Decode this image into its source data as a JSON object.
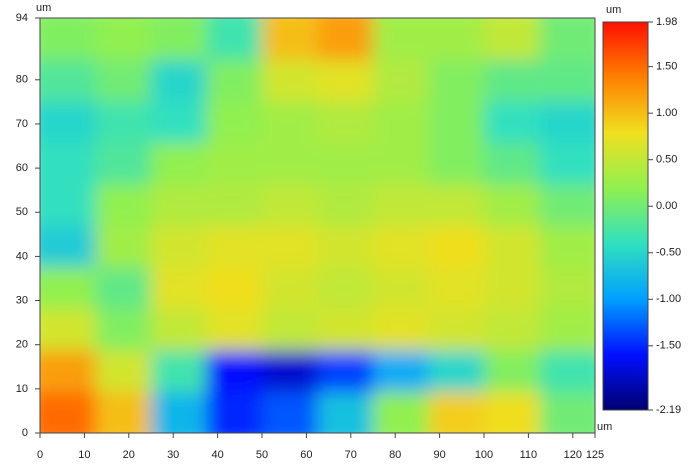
{
  "chart_data": {
    "type": "heatmap",
    "x_unit": "um",
    "y_unit": "um",
    "colorbar_unit": "um",
    "xbins": [
      0,
      12.5,
      25,
      37.5,
      50,
      62.5,
      75,
      87.5,
      100,
      112.5,
      125
    ],
    "ybins": [
      0,
      9.4,
      18.8,
      28.2,
      37.6,
      47,
      56.4,
      65.8,
      75.2,
      84.6,
      94
    ],
    "z": [
      [
        1.5,
        1.0,
        -0.8,
        -1.5,
        -1.3,
        -0.7,
        0.2,
        0.9,
        0.8,
        0.0
      ],
      [
        1.2,
        0.6,
        -0.3,
        -1.6,
        -1.8,
        -1.4,
        -0.9,
        -0.5,
        0.1,
        -0.3
      ],
      [
        0.6,
        0.1,
        0.5,
        0.7,
        0.5,
        0.6,
        0.7,
        0.6,
        0.5,
        0.3
      ],
      [
        0.2,
        -0.1,
        0.7,
        0.8,
        0.6,
        0.5,
        0.6,
        0.7,
        0.6,
        0.4
      ],
      [
        -0.6,
        0.3,
        0.6,
        0.7,
        0.7,
        0.6,
        0.7,
        0.8,
        0.6,
        0.3
      ],
      [
        -0.4,
        0.2,
        0.4,
        0.4,
        0.5,
        0.4,
        0.5,
        0.5,
        0.3,
        0.0
      ],
      [
        -0.4,
        -0.2,
        0.2,
        0.3,
        0.3,
        0.3,
        0.3,
        0.1,
        -0.1,
        -0.4
      ],
      [
        -0.5,
        -0.3,
        -0.4,
        0.2,
        0.3,
        0.4,
        0.3,
        0.1,
        -0.4,
        -0.5
      ],
      [
        -0.2,
        0.0,
        -0.5,
        0.1,
        0.6,
        0.7,
        0.4,
        0.1,
        -0.1,
        -0.1
      ],
      [
        0.1,
        0.2,
        0.1,
        -0.3,
        1.0,
        1.2,
        0.3,
        0.3,
        0.5,
        0.0
      ]
    ],
    "xlim": [
      0,
      125
    ],
    "xticks": [
      0,
      10,
      20,
      30,
      40,
      50,
      60,
      70,
      80,
      90,
      100,
      110,
      120,
      125
    ],
    "ylim": [
      0,
      94
    ],
    "yticks": [
      0,
      10,
      20,
      30,
      40,
      50,
      60,
      70,
      80,
      94
    ],
    "zlim": [
      -2.19,
      1.98
    ],
    "zticks": [
      1.98,
      {
        "value": 1.5,
        "label": "1.50"
      },
      {
        "value": 1,
        "label": "1.00"
      },
      {
        "value": 0.5,
        "label": "0.50"
      },
      {
        "value": 0,
        "label": "0.00"
      },
      {
        "value": -0.5,
        "label": "-0.50"
      },
      {
        "value": -1,
        "label": "-1.00"
      },
      {
        "value": -1.5,
        "label": "-1.50"
      },
      -2.19
    ],
    "colormap": [
      "#000070",
      "#0010ff",
      "#00a0ff",
      "#30e0c0",
      "#90f050",
      "#f0e020",
      "#ff8000",
      "#ff1000"
    ]
  }
}
